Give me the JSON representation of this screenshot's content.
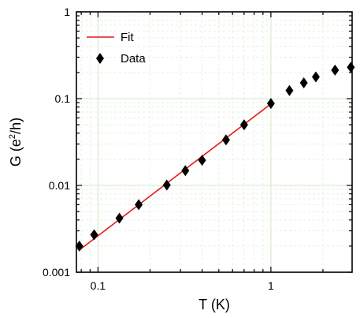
{
  "chart_data": {
    "type": "scatter",
    "xlabel": "T (K)",
    "ylabel": {
      "main": "G (e",
      "sup": "2",
      "tail": "/h)"
    },
    "x_scale": "log",
    "y_scale": "log",
    "xlim": [
      0.075,
      2.95
    ],
    "ylim": [
      0.001,
      1
    ],
    "x_ticks": [
      {
        "value": 0.1,
        "label": "0.1"
      },
      {
        "value": 1,
        "label": "1"
      }
    ],
    "y_ticks": [
      {
        "value": 0.001,
        "label": "0.001"
      },
      {
        "value": 0.01,
        "label": "0.01"
      },
      {
        "value": 0.1,
        "label": "0.1"
      },
      {
        "value": 1,
        "label": "1"
      }
    ],
    "grid": true,
    "legend": {
      "placement": "top-left"
    },
    "series": [
      {
        "name": "Fit",
        "kind": "line",
        "color": "#e31a1c",
        "x": [
          0.078,
          1.0
        ],
        "y": [
          0.0018,
          0.087
        ]
      },
      {
        "name": "Data",
        "kind": "points",
        "marker": "diamond",
        "color": "#000000",
        "x": [
          0.078,
          0.095,
          0.133,
          0.172,
          0.25,
          0.32,
          0.4,
          0.55,
          0.7,
          1.0,
          1.28,
          1.55,
          1.82,
          2.35,
          2.9
        ],
        "y": [
          0.002,
          0.0027,
          0.0042,
          0.006,
          0.0101,
          0.0148,
          0.0195,
          0.0335,
          0.05,
          0.088,
          0.124,
          0.152,
          0.178,
          0.213,
          0.23
        ]
      }
    ]
  }
}
